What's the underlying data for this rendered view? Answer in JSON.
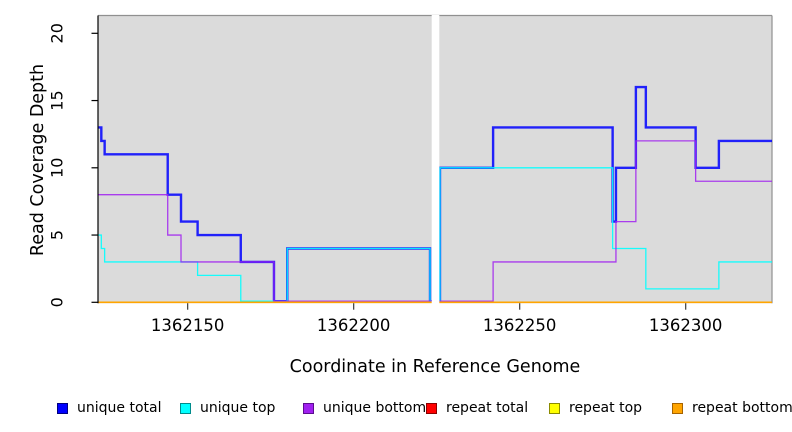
{
  "figure": {
    "x_axis_title": "Coordinate in Reference Genome",
    "y_axis_title": "Read Coverage Depth"
  },
  "legend": {
    "items": [
      {
        "label": "unique total",
        "fill": "#0000FF",
        "border": "#000080"
      },
      {
        "label": "unique top",
        "fill": "#00FFFF",
        "border": "#008B8B"
      },
      {
        "label": "unique bottom",
        "fill": "#A020F0",
        "border": "#5C0D8F"
      },
      {
        "label": "repeat total",
        "fill": "#FF0000",
        "border": "#8B0000"
      },
      {
        "label": "repeat top",
        "fill": "#FFFF00",
        "border": "#8B8B00"
      },
      {
        "label": "repeat bottom",
        "fill": "#FFA500",
        "border": "#A66300"
      }
    ]
  },
  "chart_data": {
    "type": "line",
    "style": "step-after",
    "title": "",
    "xlabel": "Coordinate in Reference Genome",
    "ylabel": "Read Coverage Depth",
    "grid": false,
    "panel_background": "#DBDBDB",
    "x_domain": [
      1362123,
      1362326
    ],
    "y_domain": [
      0,
      21.3
    ],
    "x_ticks": [
      {
        "value": 1362150,
        "label": "1362150"
      },
      {
        "value": 1362200,
        "label": "1362200"
      },
      {
        "value": 1362250,
        "label": "1362250"
      },
      {
        "value": 1362300,
        "label": "1362300"
      }
    ],
    "y_ticks": [
      {
        "value": 0,
        "label": "0"
      },
      {
        "value": 5,
        "label": "5"
      },
      {
        "value": 10,
        "label": "10"
      },
      {
        "value": 15,
        "label": "15"
      },
      {
        "value": 20,
        "label": "20"
      }
    ],
    "missing_data_gap": {
      "from": 1362223.5,
      "to": 1362225.8
    },
    "series": [
      {
        "name": "unique total",
        "group": "unique",
        "color": "#0000FF",
        "width": 2.4,
        "opacity": 0.85,
        "steps": [
          [
            1362123,
            13
          ],
          [
            1362124,
            12
          ],
          [
            1362125,
            11
          ],
          [
            1362144,
            8
          ],
          [
            1362148,
            6
          ],
          [
            1362153,
            5
          ],
          [
            1362166,
            3
          ],
          [
            1362176,
            0
          ],
          [
            1362180,
            4
          ],
          [
            1362223,
            0
          ],
          [
            1362226,
            10
          ],
          [
            1362242,
            13
          ],
          [
            1362278,
            6
          ],
          [
            1362279,
            10
          ],
          [
            1362285,
            16
          ],
          [
            1362288,
            13
          ],
          [
            1362303,
            10
          ],
          [
            1362310,
            12
          ]
        ]
      },
      {
        "name": "unique top",
        "group": "unique",
        "color": "#00FFFF",
        "width": 1.3,
        "opacity": 0.9,
        "steps": [
          [
            1362123,
            5
          ],
          [
            1362124,
            4
          ],
          [
            1362125,
            3
          ],
          [
            1362153,
            2
          ],
          [
            1362166,
            0
          ],
          [
            1362180,
            4
          ],
          [
            1362223,
            0
          ],
          [
            1362226,
            10
          ],
          [
            1362278,
            4
          ],
          [
            1362288,
            1
          ],
          [
            1362310,
            3
          ]
        ]
      },
      {
        "name": "unique bottom",
        "group": "unique",
        "color": "#A020F0",
        "width": 1.3,
        "opacity": 0.85,
        "steps": [
          [
            1362123,
            8
          ],
          [
            1362144,
            5
          ],
          [
            1362148,
            3
          ],
          [
            1362176,
            0
          ],
          [
            1362242,
            3
          ],
          [
            1362279,
            6
          ],
          [
            1362285,
            12
          ],
          [
            1362303,
            9
          ]
        ]
      },
      {
        "name": "repeat total",
        "group": "repeat",
        "color": "#FF0000",
        "width": 1.3,
        "opacity": 1,
        "steps": [
          [
            1362123,
            0
          ]
        ]
      },
      {
        "name": "repeat top",
        "group": "repeat",
        "color": "#FFFF00",
        "width": 1.3,
        "opacity": 1,
        "steps": [
          [
            1362123,
            0
          ]
        ]
      },
      {
        "name": "repeat bottom",
        "group": "repeat",
        "color": "#FFA500",
        "width": 1.7,
        "opacity": 1,
        "steps": [
          [
            1362123,
            0
          ]
        ]
      }
    ]
  }
}
